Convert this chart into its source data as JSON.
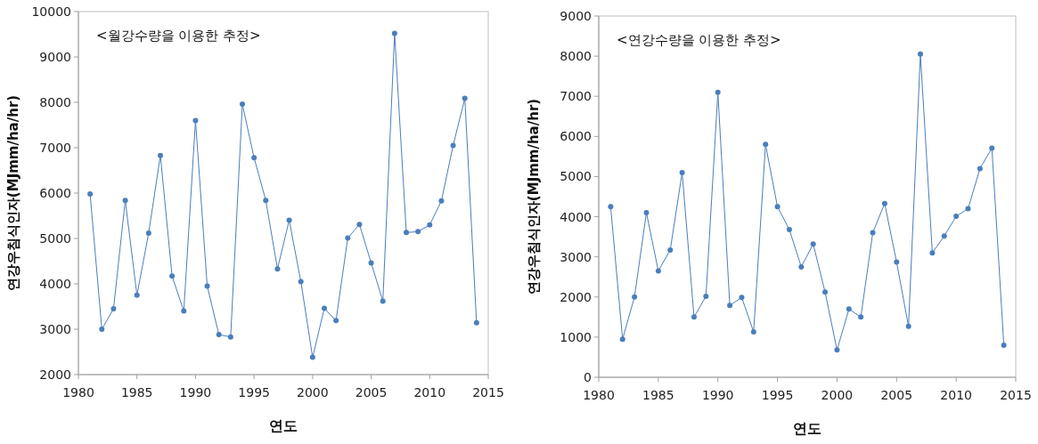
{
  "chart_data": [
    {
      "type": "line",
      "annotations": [
        "<월강수량을 이용한 추정>"
      ],
      "xlabel": "연도",
      "ylabel": "연강우침식인자(MJmm/ha/hr)",
      "color": "#4a7ebb",
      "marker": "circle",
      "x": [
        1981,
        1982,
        1983,
        1984,
        1985,
        1986,
        1987,
        1988,
        1989,
        1990,
        1991,
        1992,
        1993,
        1994,
        1995,
        1996,
        1997,
        1998,
        1999,
        2000,
        2001,
        2002,
        2003,
        2004,
        2005,
        2006,
        2007,
        2008,
        2009,
        2010,
        2011,
        2012,
        2013,
        2014
      ],
      "values": [
        5980,
        3000,
        3450,
        5840,
        3750,
        5120,
        6830,
        4170,
        3400,
        7600,
        3950,
        2880,
        2830,
        7960,
        6780,
        5840,
        4330,
        5400,
        4050,
        2380,
        3460,
        3190,
        5010,
        5310,
        4460,
        3620,
        9520,
        5130,
        5150,
        5300,
        5830,
        7050,
        8090,
        3140
      ],
      "xlim": [
        1980,
        2015
      ],
      "ylim": [
        2000,
        10000
      ],
      "xticks": [
        1980,
        1985,
        1990,
        1995,
        2000,
        2005,
        2010,
        2015
      ],
      "yticks": [
        2000,
        3000,
        4000,
        5000,
        6000,
        7000,
        8000,
        9000,
        10000
      ]
    },
    {
      "type": "line",
      "annotations": [
        "<연강수량을 이용한 추정>"
      ],
      "xlabel": "연도",
      "ylabel": "연강우침식인자(MJmm/ha/hr)",
      "color": "#4a7ebb",
      "marker": "circle",
      "x": [
        1981,
        1982,
        1983,
        1984,
        1985,
        1986,
        1987,
        1988,
        1989,
        1990,
        1991,
        1992,
        1993,
        1994,
        1995,
        1996,
        1997,
        1998,
        1999,
        2000,
        2001,
        2002,
        2003,
        2004,
        2005,
        2006,
        2007,
        2008,
        2009,
        2010,
        2011,
        2012,
        2013,
        2014
      ],
      "values": [
        4250,
        950,
        2000,
        4100,
        2650,
        3170,
        5100,
        1500,
        2020,
        7100,
        1790,
        1990,
        1130,
        5800,
        4250,
        3680,
        2750,
        3320,
        2120,
        680,
        1700,
        1500,
        3600,
        4330,
        2870,
        1270,
        8050,
        3100,
        3520,
        4010,
        4200,
        5200,
        5710,
        800
      ],
      "xlim": [
        1980,
        2015
      ],
      "ylim": [
        0,
        9000
      ],
      "xticks": [
        1980,
        1985,
        1990,
        1995,
        2000,
        2005,
        2010,
        2015
      ],
      "yticks": [
        0,
        1000,
        2000,
        3000,
        4000,
        5000,
        6000,
        7000,
        8000,
        9000
      ]
    }
  ]
}
